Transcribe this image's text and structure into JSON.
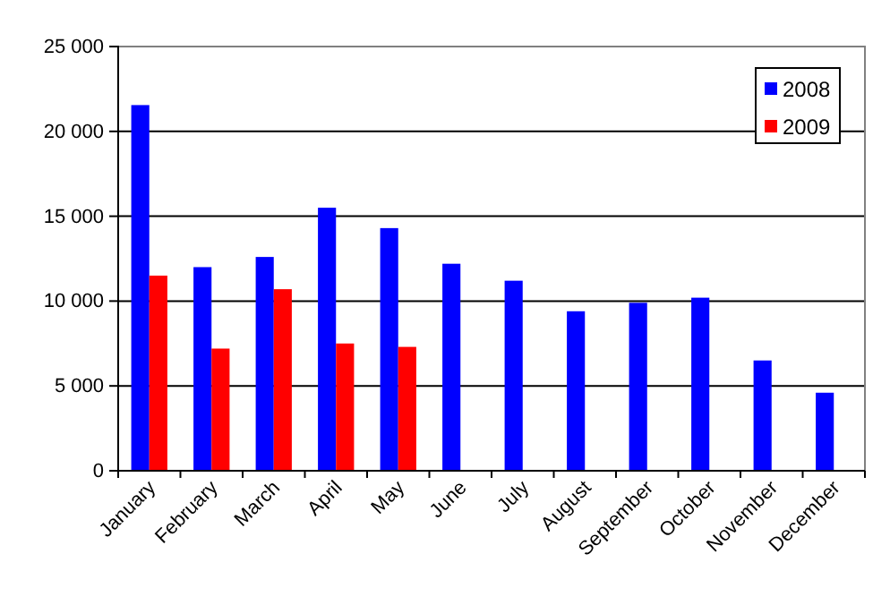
{
  "chart_data": {
    "type": "bar",
    "categories": [
      "January",
      "February",
      "March",
      "April",
      "May",
      "June",
      "July",
      "August",
      "September",
      "October",
      "November",
      "December"
    ],
    "series": [
      {
        "name": "2008",
        "color": "#0000ff",
        "values": [
          21550,
          12000,
          12600,
          15500,
          14300,
          12200,
          11200,
          9400,
          9900,
          10200,
          6500,
          4600
        ]
      },
      {
        "name": "2009",
        "color": "#ff0000",
        "values": [
          11500,
          7200,
          10700,
          7500,
          7300,
          null,
          null,
          null,
          null,
          null,
          null,
          null
        ]
      }
    ],
    "ylim": [
      0,
      25000
    ],
    "yticks": [
      {
        "value": 0,
        "label": "0"
      },
      {
        "value": 5000,
        "label": "5 000"
      },
      {
        "value": 10000,
        "label": "10 000"
      },
      {
        "value": 15000,
        "label": "15 000"
      },
      {
        "value": 20000,
        "label": "20 000"
      },
      {
        "value": 25000,
        "label": "25 000"
      }
    ],
    "grid": "y",
    "legend": "top right"
  }
}
